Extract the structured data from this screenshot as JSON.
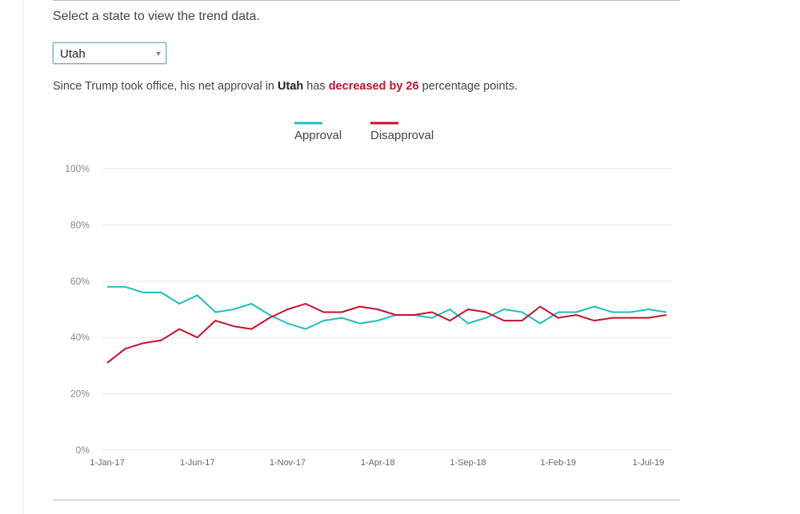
{
  "prompt": "Select a state to view the trend data.",
  "selector": {
    "value": "Utah"
  },
  "summary": {
    "prefix": "Since Trump took office, his net approval in ",
    "state": "Utah",
    "mid": " has ",
    "change": "decreased by 26",
    "suffix": " percentage points."
  },
  "colors": {
    "approval": "#1cbcc4",
    "disapproval": "#c4112f"
  },
  "chart_data": {
    "type": "line",
    "title": "",
    "xlabel": "",
    "ylabel": "",
    "ylim": [
      0,
      100
    ],
    "y_ticks": [
      "0%",
      "20%",
      "40%",
      "60%",
      "80%",
      "100%"
    ],
    "y_tick_values": [
      0,
      20,
      40,
      60,
      80,
      100
    ],
    "grid": true,
    "legend_position": "top-center",
    "x_tick_labels": [
      "1-Jan-17",
      "1-Jun-17",
      "1-Nov-17",
      "1-Apr-18",
      "1-Sep-18",
      "1-Feb-19",
      "1-Jul-19"
    ],
    "x_tick_indices": [
      0,
      5,
      10,
      15,
      20,
      25,
      30
    ],
    "categories": [
      "Jan-17",
      "Feb-17",
      "Mar-17",
      "Apr-17",
      "May-17",
      "Jun-17",
      "Jul-17",
      "Aug-17",
      "Sep-17",
      "Oct-17",
      "Nov-17",
      "Dec-17",
      "Jan-18",
      "Feb-18",
      "Mar-18",
      "Apr-18",
      "May-18",
      "Jun-18",
      "Jul-18",
      "Aug-18",
      "Sep-18",
      "Oct-18",
      "Nov-18",
      "Dec-18",
      "Jan-19",
      "Feb-19",
      "Mar-19",
      "Apr-19",
      "May-19",
      "Jun-19",
      "Jul-19",
      "Aug-19"
    ],
    "series": [
      {
        "name": "Approval",
        "values": [
          58,
          58,
          56,
          56,
          52,
          55,
          49,
          50,
          52,
          48,
          45,
          43,
          46,
          47,
          45,
          46,
          48,
          48,
          47,
          50,
          45,
          47,
          50,
          49,
          45,
          49,
          49,
          51,
          49,
          49,
          50,
          49
        ]
      },
      {
        "name": "Disapproval",
        "values": [
          31,
          36,
          38,
          39,
          43,
          40,
          46,
          44,
          43,
          47,
          50,
          52,
          49,
          49,
          51,
          50,
          48,
          48,
          49,
          46,
          50,
          49,
          46,
          46,
          51,
          47,
          48,
          46,
          47,
          47,
          47,
          48
        ]
      }
    ]
  }
}
